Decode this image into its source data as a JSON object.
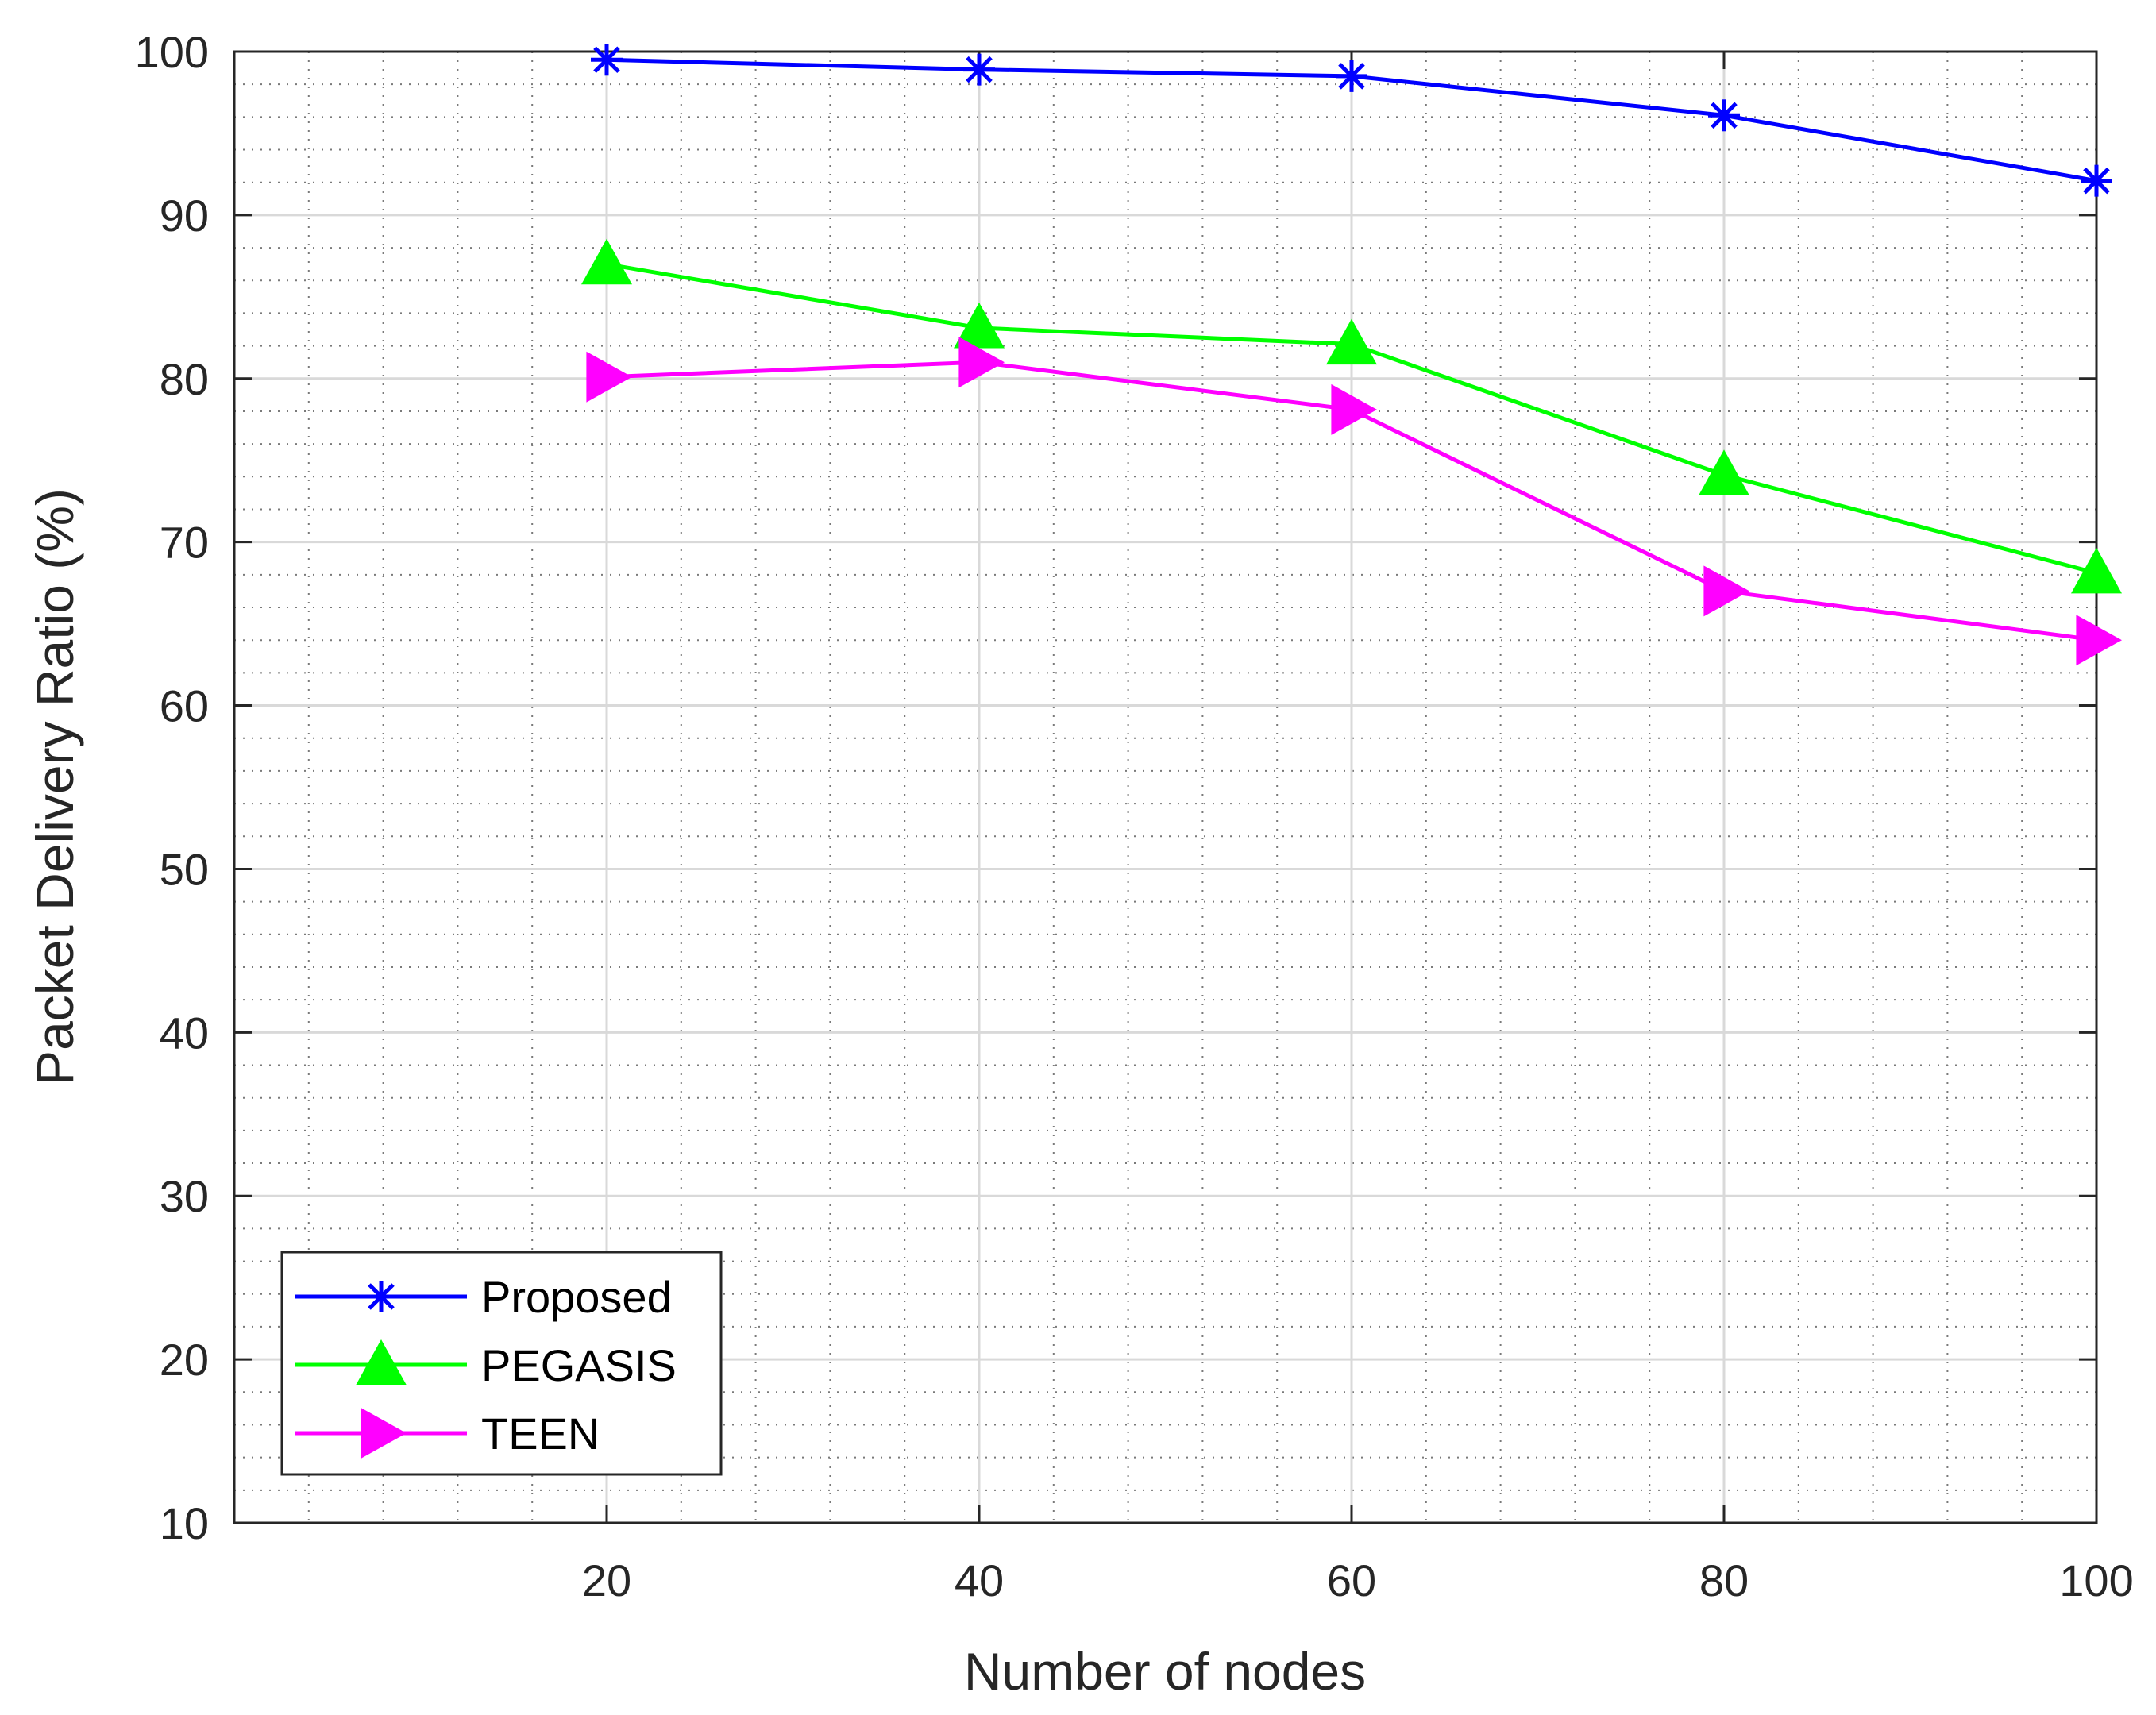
{
  "chart_data": {
    "type": "line",
    "title": "",
    "xlabel": "Number of nodes",
    "ylabel": "Packet Delivery Ratio (%)",
    "xlim": [
      0,
      100
    ],
    "ylim": [
      10,
      100
    ],
    "xticks": [
      20,
      40,
      60,
      80,
      100
    ],
    "yticks": [
      10,
      20,
      30,
      40,
      50,
      60,
      70,
      80,
      90,
      100
    ],
    "x": [
      20,
      40,
      60,
      80,
      100
    ],
    "grid": true,
    "minor_grid": true,
    "legend_position": "bottom-left",
    "series": [
      {
        "name": "Proposed",
        "values": [
          99.5,
          98.9,
          98.5,
          96.1,
          92.1
        ],
        "color": "#0000ff",
        "marker": "asterisk"
      },
      {
        "name": "PEGASIS",
        "values": [
          87.0,
          83.1,
          82.1,
          74.1,
          68.1
        ],
        "color": "#00ff00",
        "marker": "triangle-up"
      },
      {
        "name": "TEEN",
        "values": [
          80.1,
          81.0,
          78.1,
          67.0,
          64.0
        ],
        "color": "#ff00ff",
        "marker": "triangle-right"
      }
    ]
  }
}
